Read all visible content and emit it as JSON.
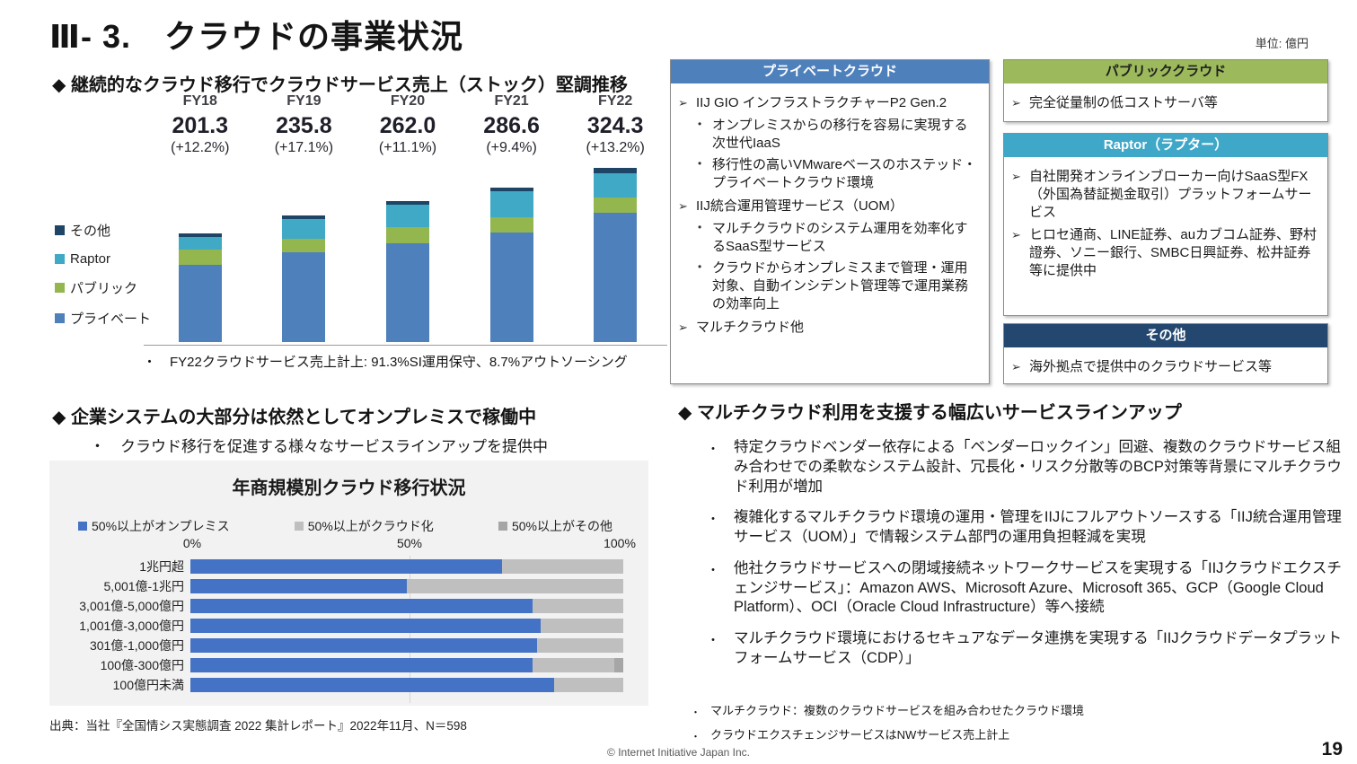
{
  "page": {
    "title": "Ⅲ- 3.　クラウドの事業状況",
    "unit_label": "単位: 億円",
    "copyright": "© Internet Initiative Japan Inc.",
    "page_number": "19"
  },
  "revenue_section": {
    "heading": "◆ 継続的なクラウド移行でクラウドサービス売上（ストック）堅調推移",
    "footnote": "・　FY22クラウドサービス売上計上: 91.3%SI運用保守、8.7%アウトソーシング"
  },
  "service_boxes": {
    "private_cloud": {
      "header": "プライベートクラウド",
      "header_color": "#4e80bc",
      "items": [
        {
          "level": 1,
          "text": "IIJ GIO インフラストラクチャーP2 Gen.2"
        },
        {
          "level": 2,
          "text": "オンプレミスからの移行を容易に実現する次世代IaaS"
        },
        {
          "level": 2,
          "text": "移行性の高いVMwareベースのホステッド・プライベートクラウド環境"
        },
        {
          "level": 1,
          "text": "IIJ統合運用管理サービス（UOM）"
        },
        {
          "level": 2,
          "text": "マルチクラウドのシステム運用を効率化するSaaS型サービス"
        },
        {
          "level": 2,
          "text": "クラウドからオンプレミスまで管理・運用対象、自動インシデント管理等で運用業務の効率向上"
        },
        {
          "level": 1,
          "text": "マルチクラウド他"
        }
      ]
    },
    "public_cloud": {
      "header": "パブリッククラウド",
      "header_color": "#9cba5b",
      "header_text_color": "#1f1f1f",
      "items": [
        {
          "level": 1,
          "text": "完全従量制の低コストサーバ等"
        }
      ]
    },
    "raptor": {
      "header": "Raptor（ラプター）",
      "header_color": "#3fa8c8",
      "items": [
        {
          "level": 1,
          "text": "自社開発オンラインブローカー向けSaaS型FX（外国為替証拠金取引）プラットフォームサービス"
        },
        {
          "level": 1,
          "text": "ヒロセ通商、LINE証券、auカブコム証券、野村證券、ソニー銀行、SMBC日興証券、松井証券等に提供中"
        }
      ]
    },
    "other": {
      "header": "その他",
      "header_color": "#24476f",
      "items": [
        {
          "level": 1,
          "text": "海外拠点で提供中のクラウドサービス等"
        }
      ]
    }
  },
  "onprem_section": {
    "heading": "◆ 企業システムの大部分は依然としてオンプレミスで稼働中",
    "sub_bullet": "・　クラウド移行を促進する様々なサービスラインアップを提供中",
    "source": "出典：当社『全国情シス実態調査 2022 集計レポート』2022年11月、N＝598"
  },
  "multicloud_section": {
    "heading": "◆ マルチクラウド利用を支援する幅広いサービスラインアップ",
    "bullets": [
      "特定クラウドベンダー依存による「ベンダーロックイン」回避、複数のクラウドサービス組み合わせでの柔軟なシステム設計、冗長化・リスク分散等のBCP対策等背景にマルチクラウド利用が増加",
      "複雑化するマルチクラウド環境の運用・管理をIIJにフルアウトソースする「IIJ統合運用管理サービス（UOM）」で情報システム部門の運用負担軽減を実現",
      "他社クラウドサービスへの閉域接続ネットワークサービスを実現する「IIJクラウドエクスチェンジサービス」：Amazon AWS、Microsoft Azure、Microsoft 365、GCP（Google Cloud Platform）、OCI（Oracle Cloud Infrastructure）等へ接続",
      "マルチクラウド環境におけるセキュアなデータ連携を実現する「IIJクラウドデータプラットフォームサービス（CDP）」"
    ],
    "footnotes": [
      "マルチクラウド：複数のクラウドサービスを組み合わせたクラウド環境",
      "クラウドエクスチェンジサービスはNWサービス売上計上"
    ]
  },
  "chart_data": [
    {
      "name": "cloud-service-revenue-stock",
      "type": "bar",
      "subtype": "stacked-vertical",
      "unit": "億円",
      "categories": [
        "FY18",
        "FY19",
        "FY20",
        "FY21",
        "FY22"
      ],
      "totals": [
        201.3,
        235.8,
        262.0,
        286.6,
        324.3
      ],
      "total_labels": [
        "201.3",
        "235.8",
        "262.0",
        "286.6",
        "324.3"
      ],
      "growth_labels": [
        "(+12.2%)",
        "(+17.1%)",
        "(+11.1%)",
        "(+9.4%)",
        "(+13.2%)"
      ],
      "series": [
        {
          "key": "private",
          "name": "プライベート",
          "color": "#4e80bc",
          "values": [
            144.0,
            166.6,
            183.4,
            202.8,
            239.4
          ]
        },
        {
          "key": "public",
          "name": "パブリック",
          "color": "#93b64f",
          "values": [
            28.0,
            25.8,
            29.7,
            29.0,
            29.4
          ]
        },
        {
          "key": "raptor",
          "name": "Raptor",
          "color": "#3fa9c6",
          "values": [
            23.5,
            36.0,
            42.2,
            47.5,
            45.3
          ]
        },
        {
          "key": "other",
          "name": "その他",
          "color": "#1e4466",
          "values": [
            5.8,
            7.4,
            6.7,
            7.3,
            10.2
          ]
        }
      ],
      "legend_position": "left",
      "legend_order_top_to_bottom": [
        "その他",
        "Raptor",
        "パブリック",
        "プライベート"
      ]
    },
    {
      "name": "cloud-migration-by-company-revenue",
      "type": "bar",
      "subtype": "stacked-horizontal",
      "title": "年商規模別クラウド移行状況",
      "categories": [
        "1兆円超",
        "5,001億-1兆円",
        "3,001億-5,000億円",
        "1,001億-3,000億円",
        "301億-1,000億円",
        "100億-300億円",
        "100億円未満"
      ],
      "series": [
        {
          "key": "onprem",
          "name": "50%以上がオンプレミス",
          "color": "#4472c4",
          "values": [
            72,
            50,
            79,
            81,
            80,
            79,
            84
          ]
        },
        {
          "key": "cloud",
          "name": "50%以上がクラウド化",
          "color": "#bfbfbf",
          "values": [
            28,
            50,
            21,
            19,
            20,
            19,
            16
          ]
        },
        {
          "key": "others",
          "name": "50%以上がその他",
          "color": "#a6a6a6",
          "values": [
            0,
            0,
            0,
            0,
            0,
            2,
            0
          ]
        }
      ],
      "x_ticks": [
        "0%",
        "50%",
        "100%"
      ],
      "xlim": [
        0,
        100
      ],
      "gridline_at": 50,
      "legend_position": "top"
    }
  ]
}
